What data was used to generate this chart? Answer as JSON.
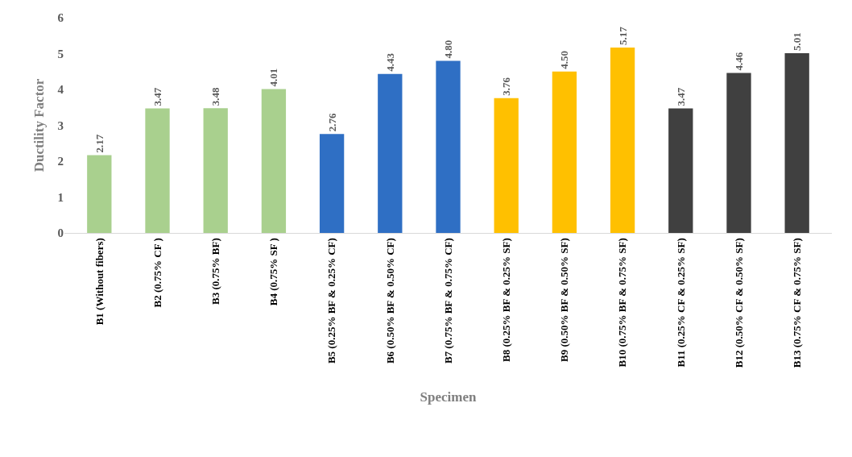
{
  "chart_data": {
    "type": "bar",
    "xlabel": "Specimen",
    "ylabel": "Ductility Factor",
    "categories": [
      "B1 (Without fibers)",
      "B2 (0.75% CF )",
      "B3 (0.75% BF)",
      "B4 (0.75% SF )",
      "B5 (0.25% BF & 0.25% CF)",
      "B6 (0.50% BF & 0.50% CF)",
      "B7 (0.75% BF & 0.75% CF)",
      "B8 (0.25% BF & 0.25% SF)",
      "B9 (0.50% BF & 0.50% SF)",
      "B10 (0.75% BF & 0.75% SF)",
      "B11 (0.25% CF & 0.25% SF)",
      "B12 (0.50% CF & 0.50% SF)",
      "B13 (0.75% CF & 0.75% SF)"
    ],
    "values": [
      2.17,
      3.47,
      3.48,
      4.01,
      2.76,
      4.43,
      4.8,
      3.76,
      4.5,
      5.17,
      3.47,
      4.46,
      5.01
    ],
    "value_labels": [
      "2.17",
      "3.47",
      "3.48",
      "4.01",
      "2.76",
      "4.43",
      "4.80",
      "3.76",
      "4.50",
      "5.17",
      "3.47",
      "4.46",
      "5.01"
    ],
    "colors": [
      "#a9d08e",
      "#a9d08e",
      "#a9d08e",
      "#a9d08e",
      "#2f6fc4",
      "#2f6fc4",
      "#2f6fc4",
      "#ffc000",
      "#ffc000",
      "#ffc000",
      "#404040",
      "#404040",
      "#404040"
    ],
    "ylim": [
      0,
      6
    ],
    "yticks": [
      0,
      1,
      2,
      3,
      4,
      5,
      6
    ]
  }
}
